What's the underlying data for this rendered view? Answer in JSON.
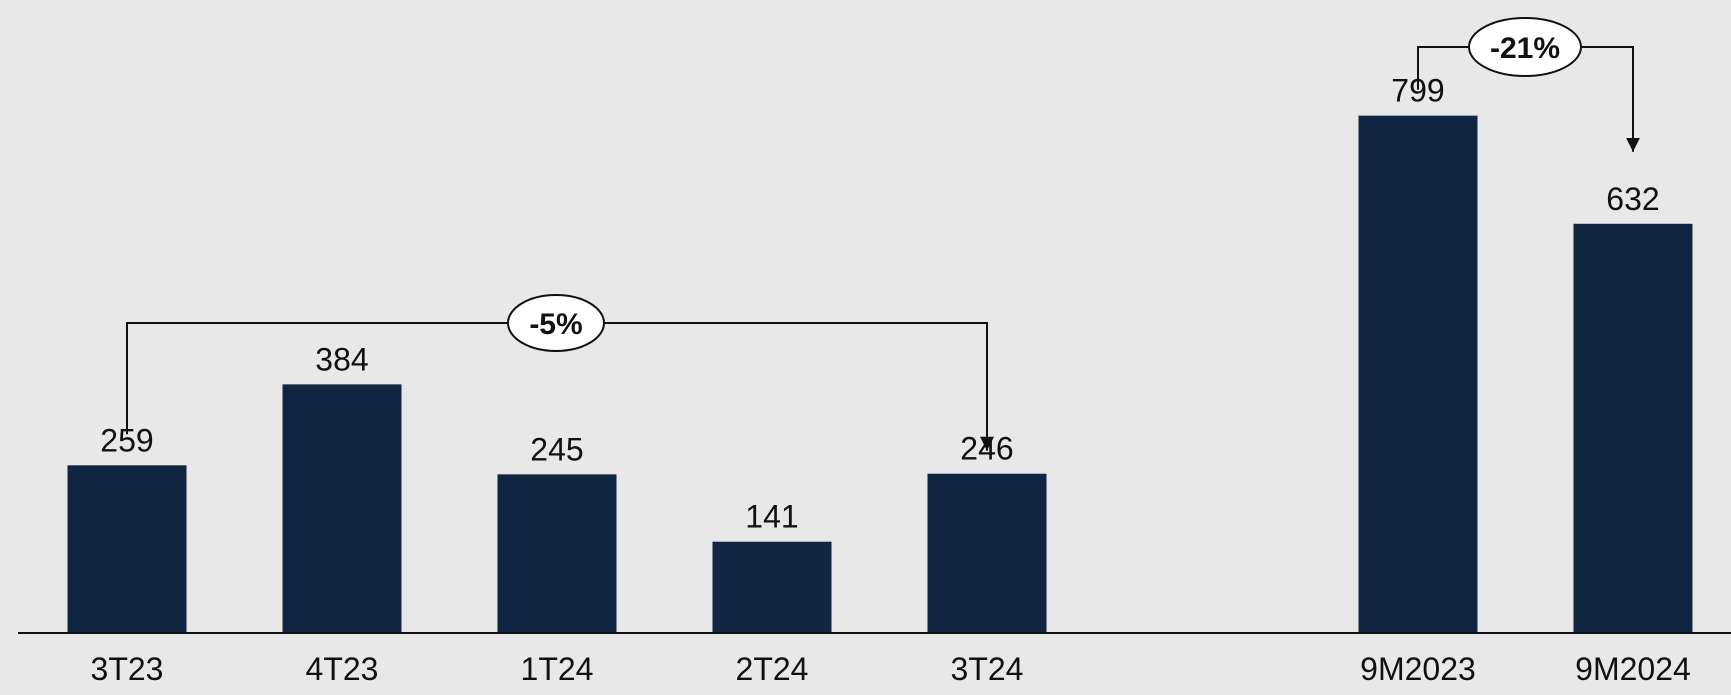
{
  "chart_data": {
    "type": "bar",
    "title": "",
    "xlabel": "",
    "ylabel": "",
    "ylim": [
      0,
      850
    ],
    "grid": false,
    "legend": "none",
    "groups": [
      {
        "categories": [
          "3T23",
          "4T23",
          "1T24",
          "2T24",
          "3T24"
        ],
        "values": [
          259,
          384,
          245,
          141,
          246
        ],
        "value_labels": [
          "259",
          "384",
          "245",
          "141",
          "246"
        ],
        "comparison": {
          "from": "3T23",
          "to": "3T24",
          "label": "-5%"
        }
      },
      {
        "categories": [
          "9M2023",
          "9M2024"
        ],
        "values": [
          799,
          632
        ],
        "value_labels": [
          "799",
          "632"
        ],
        "comparison": {
          "from": "9M2023",
          "to": "9M2024",
          "label": "-21%"
        }
      }
    ],
    "colors": {
      "bar": "#0f2542",
      "axis": "#111111",
      "background": "#e8e8e8",
      "bubble_fill": "#ffffff"
    }
  }
}
